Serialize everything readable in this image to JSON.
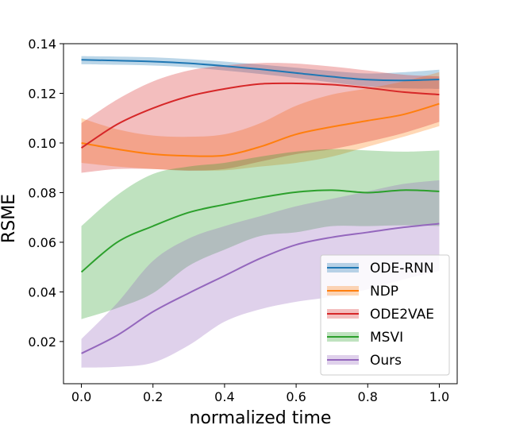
{
  "chart_data": {
    "type": "line",
    "title": "",
    "xlabel": "normalized time",
    "ylabel": "RSME",
    "xlim": [
      -0.05,
      1.05
    ],
    "ylim": [
      0.003,
      0.14
    ],
    "xticks": [
      0.0,
      0.2,
      0.4,
      0.6,
      0.8,
      1.0
    ],
    "xtick_labels": [
      "0.0",
      "0.2",
      "0.4",
      "0.6",
      "0.8",
      "1.0"
    ],
    "yticks": [
      0.02,
      0.04,
      0.06,
      0.08,
      0.1,
      0.12,
      0.14
    ],
    "ytick_labels": [
      "0.02",
      "0.04",
      "0.06",
      "0.08",
      "0.10",
      "0.12",
      "0.14"
    ],
    "grid": false,
    "legend_position": "lower-right",
    "x": [
      0.0,
      0.1,
      0.2,
      0.3,
      0.4,
      0.5,
      0.6,
      0.7,
      0.8,
      0.9,
      1.0
    ],
    "series": [
      {
        "name": "ODE-RNN",
        "color": "#1f77b4",
        "values": [
          0.1335,
          0.1332,
          0.1328,
          0.1321,
          0.131,
          0.1297,
          0.1282,
          0.1267,
          0.1255,
          0.1252,
          0.1256
        ],
        "lower": [
          0.1317,
          0.1315,
          0.1312,
          0.1305,
          0.1292,
          0.1278,
          0.1262,
          0.1244,
          0.1228,
          0.122,
          0.1218
        ],
        "upper": [
          0.135,
          0.1348,
          0.1345,
          0.1338,
          0.1328,
          0.1316,
          0.1303,
          0.129,
          0.128,
          0.1285,
          0.1295
        ]
      },
      {
        "name": "NDP",
        "color": "#ff7f0e",
        "values": [
          0.1,
          0.0975,
          0.0955,
          0.0948,
          0.095,
          0.0985,
          0.1035,
          0.1065,
          0.109,
          0.1115,
          0.1158
        ],
        "lower": [
          0.092,
          0.0905,
          0.0895,
          0.089,
          0.089,
          0.0905,
          0.092,
          0.0945,
          0.0985,
          0.1025,
          0.1068
        ],
        "upper": [
          0.11,
          0.1055,
          0.103,
          0.1025,
          0.1035,
          0.108,
          0.115,
          0.1195,
          0.122,
          0.1248,
          0.1285
        ]
      },
      {
        "name": "ODE2VAE",
        "color": "#d62728",
        "values": [
          0.098,
          0.1075,
          0.114,
          0.1188,
          0.1218,
          0.1238,
          0.124,
          0.1235,
          0.1222,
          0.1205,
          0.1195
        ],
        "lower": [
          0.088,
          0.0895,
          0.0895,
          0.0888,
          0.0895,
          0.0925,
          0.0955,
          0.0975,
          0.1005,
          0.104,
          0.1085
        ],
        "upper": [
          0.108,
          0.1175,
          0.1248,
          0.1292,
          0.1312,
          0.1322,
          0.132,
          0.1308,
          0.1292,
          0.1275,
          0.1268
        ]
      },
      {
        "name": "MSVI",
        "color": "#2ca02c",
        "values": [
          0.048,
          0.06,
          0.0665,
          0.072,
          0.0752,
          0.078,
          0.0802,
          0.081,
          0.08,
          0.081,
          0.0805
        ],
        "lower": [
          0.029,
          0.0335,
          0.0395,
          0.0505,
          0.057,
          0.0625,
          0.064,
          0.0665,
          0.0665,
          0.0668,
          0.0665
        ],
        "upper": [
          0.0665,
          0.079,
          0.0875,
          0.0905,
          0.092,
          0.0945,
          0.0965,
          0.0975,
          0.097,
          0.0965,
          0.097
        ]
      },
      {
        "name": "Ours",
        "color": "#9467bd",
        "values": [
          0.0152,
          0.0225,
          0.032,
          0.0395,
          0.0465,
          0.0535,
          0.059,
          0.062,
          0.064,
          0.066,
          0.0675
        ],
        "lower": [
          0.0095,
          0.0098,
          0.0115,
          0.0185,
          0.028,
          0.033,
          0.036,
          0.038,
          0.041,
          0.045,
          0.0485
        ],
        "upper": [
          0.021,
          0.0355,
          0.0525,
          0.0615,
          0.0665,
          0.0705,
          0.0745,
          0.0775,
          0.0805,
          0.0835,
          0.085
        ]
      }
    ]
  }
}
